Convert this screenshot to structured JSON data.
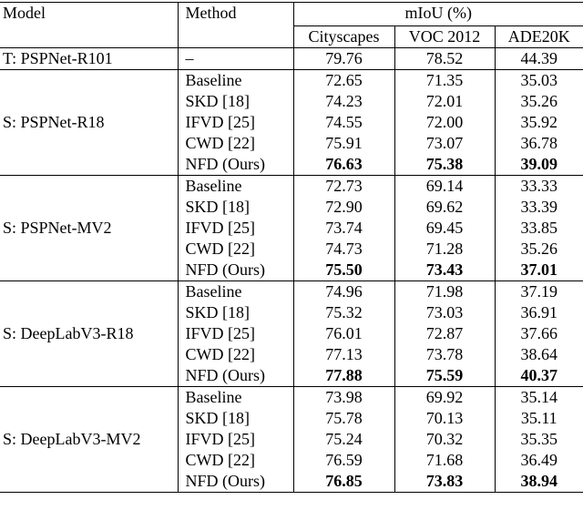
{
  "header": {
    "model": "Model",
    "method": "Method",
    "metric": "mIoU (%)",
    "datasets": [
      "Cityscapes",
      "VOC 2012",
      "ADE20K"
    ]
  },
  "teacher": {
    "model": "T: PSPNet-R101",
    "method": "–",
    "values": [
      "79.76",
      "78.52",
      "44.39"
    ]
  },
  "groups": [
    {
      "model": "S: PSPNet-R18",
      "rows": [
        {
          "method": "Baseline",
          "values": [
            "72.65",
            "71.35",
            "35.03"
          ]
        },
        {
          "method": "SKD [18]",
          "values": [
            "74.23",
            "72.01",
            "35.26"
          ]
        },
        {
          "method": "IFVD [25]",
          "values": [
            "74.55",
            "72.00",
            "35.92"
          ]
        },
        {
          "method": "CWD [22]",
          "values": [
            "75.91",
            "73.07",
            "36.78"
          ]
        },
        {
          "method": "NFD (Ours)",
          "values": [
            "76.63",
            "75.38",
            "39.09"
          ]
        }
      ]
    },
    {
      "model": "S: PSPNet-MV2",
      "rows": [
        {
          "method": "Baseline",
          "values": [
            "72.73",
            "69.14",
            "33.33"
          ]
        },
        {
          "method": "SKD [18]",
          "values": [
            "72.90",
            "69.62",
            "33.39"
          ]
        },
        {
          "method": "IFVD [25]",
          "values": [
            "73.74",
            "69.45",
            "33.85"
          ]
        },
        {
          "method": "CWD [22]",
          "values": [
            "74.73",
            "71.28",
            "35.26"
          ]
        },
        {
          "method": "NFD (Ours)",
          "values": [
            "75.50",
            "73.43",
            "37.01"
          ]
        }
      ]
    },
    {
      "model": "S: DeepLabV3-R18",
      "rows": [
        {
          "method": "Baseline",
          "values": [
            "74.96",
            "71.98",
            "37.19"
          ]
        },
        {
          "method": "SKD [18]",
          "values": [
            "75.32",
            "73.03",
            "36.91"
          ]
        },
        {
          "method": "IFVD [25]",
          "values": [
            "76.01",
            "72.87",
            "37.66"
          ]
        },
        {
          "method": "CWD [22]",
          "values": [
            "77.13",
            "73.78",
            "38.64"
          ]
        },
        {
          "method": "NFD (Ours)",
          "values": [
            "77.88",
            "75.59",
            "40.37"
          ]
        }
      ]
    },
    {
      "model": "S: DeepLabV3-MV2",
      "rows": [
        {
          "method": "Baseline",
          "values": [
            "73.98",
            "69.92",
            "35.14"
          ]
        },
        {
          "method": "SKD [18]",
          "values": [
            "75.78",
            "70.13",
            "35.11"
          ]
        },
        {
          "method": "IFVD [25]",
          "values": [
            "75.24",
            "70.32",
            "35.35"
          ]
        },
        {
          "method": "CWD [22]",
          "values": [
            "76.59",
            "71.68",
            "36.49"
          ]
        },
        {
          "method": "NFD (Ours)",
          "values": [
            "76.85",
            "73.83",
            "38.94"
          ]
        }
      ]
    }
  ]
}
